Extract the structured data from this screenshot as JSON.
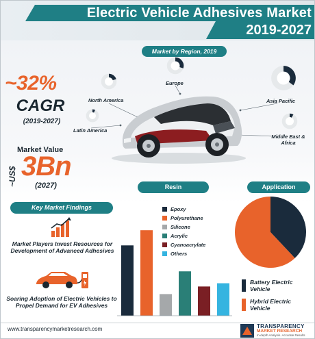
{
  "header": {
    "title": "Electric Vehicle Adhesives Market",
    "years": "2019-2027"
  },
  "region": {
    "title": "Market by Region, 2019",
    "labels": {
      "north_america": "North America",
      "europe": "Europe",
      "asia_pacific": "Asia Pacific",
      "latin_america": "Latin America",
      "middle_east_africa": "Middle East & Africa"
    }
  },
  "cagr": {
    "value": "~32%",
    "label": "CAGR",
    "years": "(2019-2027)"
  },
  "market_value": {
    "label": "Market Value",
    "prefix": "~US$",
    "value": "3Bn",
    "year": "(2027)"
  },
  "findings": {
    "title": "Key Market Findings",
    "item1": "Market Players Invest Resources for Development of Advanced Adhesives",
    "item2": "Soaring Adoption of Electric Vehicles to Propel Demand for EV Adhesives"
  },
  "resin": {
    "title": "Resin"
  },
  "application": {
    "title": "Application"
  },
  "footer": {
    "url": "www.transparencymarketresearch.com",
    "brand_line1": "TRANSPARENCY",
    "brand_line2": "MARKET RESEARCH",
    "brand_tag": "In-depth Analysis. Accurate Results"
  },
  "colors": {
    "teal": "#1f7f85",
    "orange": "#e8632b",
    "navy": "#1a2b3c",
    "grey": "#a5a8aa",
    "green_teal": "#2a7f77",
    "maroon": "#7a1f24",
    "light_blue": "#35b4e0"
  },
  "chart_data": [
    {
      "type": "bar",
      "title": "Resin",
      "categories": [
        "Epoxy",
        "Polyurethane",
        "Silicone",
        "Acrylic",
        "Cyanoacrylate",
        "Others"
      ],
      "values": [
        65,
        79,
        20,
        41,
        27,
        30
      ],
      "ylim": [
        0,
        100
      ],
      "grid": false,
      "legend": "top-right"
    },
    {
      "type": "pie",
      "title": "Application",
      "categories": [
        "Battery Electric Vehicle",
        "Hybrid Electric Vehicle"
      ],
      "values": [
        38,
        62
      ],
      "legend": "bottom"
    },
    {
      "type": "pie",
      "title": "Market by Region, 2019",
      "categories": [
        "North America",
        "Europe",
        "Asia Pacific",
        "Latin America",
        "Middle East & Africa"
      ],
      "values": [
        20,
        30,
        35,
        7,
        8
      ]
    }
  ]
}
